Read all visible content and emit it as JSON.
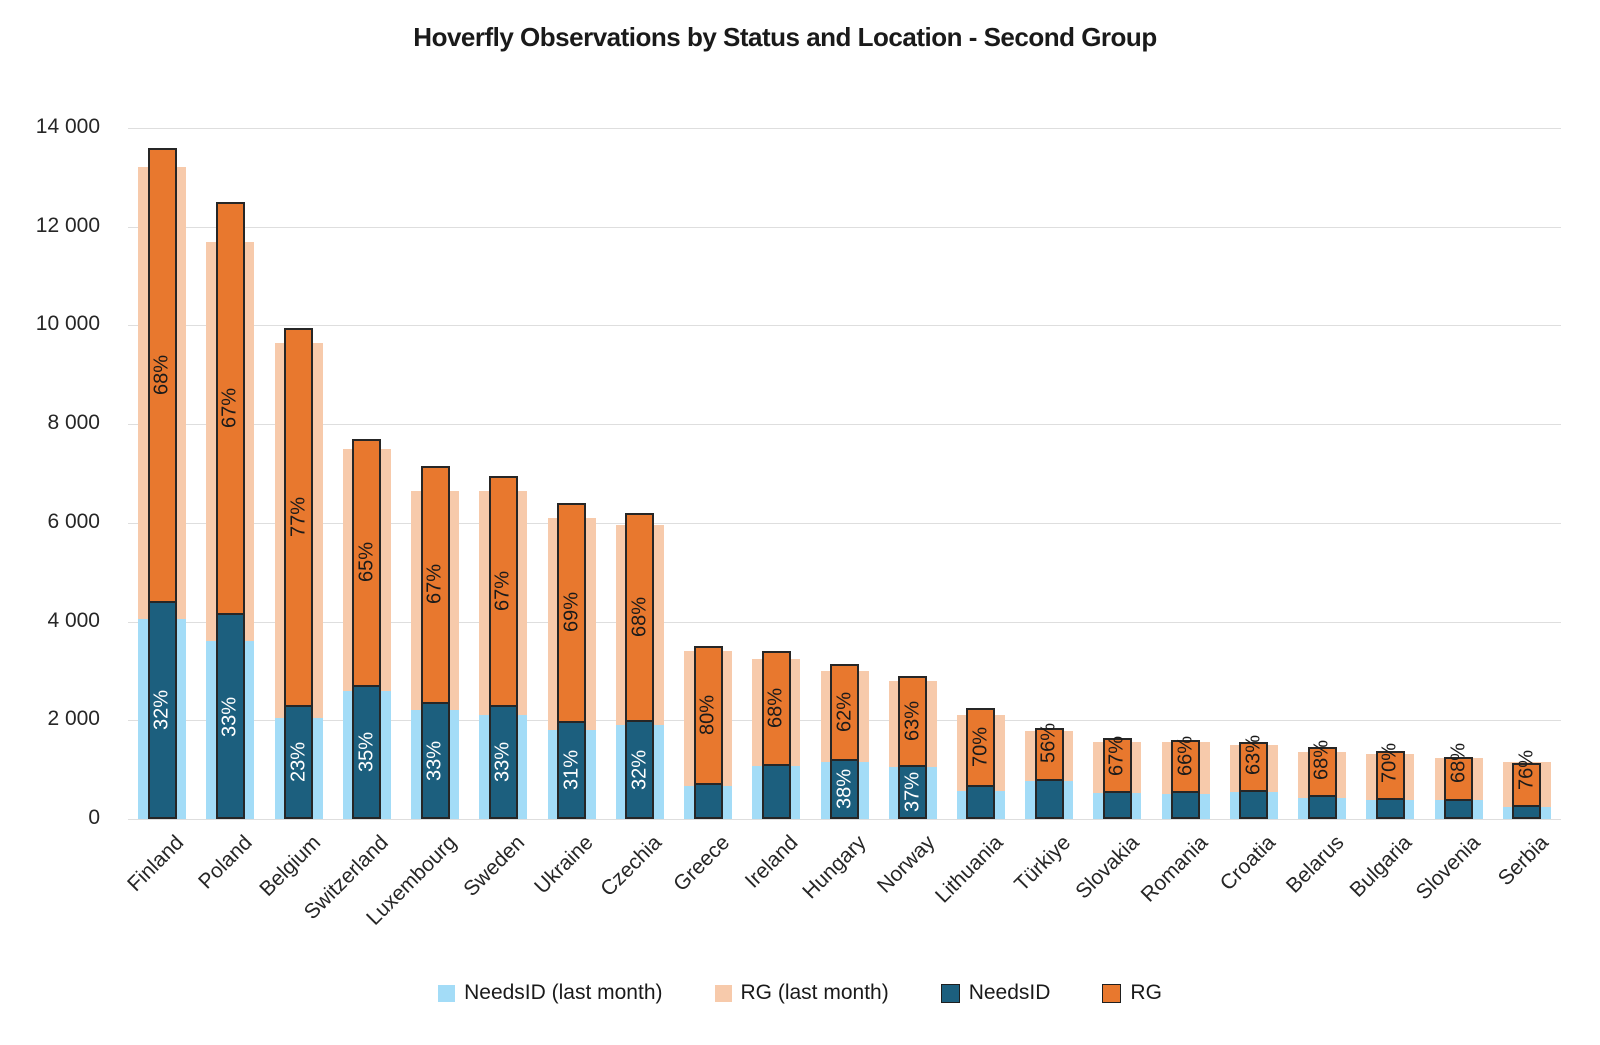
{
  "chart_data": {
    "type": "bar",
    "title": "Hoverfly Observations by Status and Location - Second Group",
    "xlabel": "",
    "ylabel": "",
    "ylim": [
      0,
      14000
    ],
    "ytick_step": 2000,
    "yticks": [
      "0",
      "2 000",
      "4 000",
      "6 000",
      "8 000",
      "10 000",
      "12 000",
      "14 000"
    ],
    "grid": true,
    "legend_position": "bottom",
    "bar_style": "stacked, current-period narrow bars overlaid on wider last-month bars",
    "categories": [
      "Finland",
      "Poland",
      "Belgium",
      "Switzerland",
      "Luxembourg",
      "Sweden",
      "Ukraine",
      "Czechia",
      "Greece",
      "Ireland",
      "Hungary",
      "Norway",
      "Lithuania",
      "Türkiye",
      "Slovakia",
      "Romania",
      "Croatia",
      "Belarus",
      "Bulgaria",
      "Slovenia",
      "Serbia"
    ],
    "series": [
      {
        "name": "NeedsID (last month)",
        "role": "back-bottom",
        "color": "#a3dcf7",
        "values": [
          4050,
          3600,
          2050,
          2600,
          2200,
          2100,
          1800,
          1900,
          670,
          1075,
          1150,
          1050,
          570,
          775,
          525,
          500,
          550,
          425,
          390,
          390,
          250
        ]
      },
      {
        "name": "RG (last month)",
        "role": "back-top",
        "color": "#f7caab",
        "values": [
          9150,
          8100,
          7600,
          4900,
          4450,
          4550,
          4300,
          4050,
          2730,
          2175,
          1850,
          1750,
          1530,
          1000,
          1025,
          1050,
          950,
          925,
          935,
          840,
          900
        ]
      },
      {
        "name": "NeedsID",
        "role": "front-bottom",
        "color": "#1c5f7e",
        "values": [
          4400,
          4150,
          2290,
          2700,
          2360,
          2300,
          1975,
          2000,
          700,
          1100,
          1200,
          1075,
          675,
          815,
          550,
          545,
          575,
          465,
          415,
          400,
          270
        ]
      },
      {
        "name": "RG",
        "role": "front-top",
        "color": "#e8782e",
        "values": [
          9200,
          8350,
          7660,
          5000,
          4790,
          4650,
          4425,
          4200,
          2800,
          2300,
          1950,
          1825,
          1575,
          1035,
          1100,
          1055,
          975,
          985,
          960,
          850,
          855
        ]
      }
    ],
    "bar_labels": {
      "rg_pct": [
        "68%",
        "67%",
        "77%",
        "65%",
        "67%",
        "67%",
        "69%",
        "68%",
        "80%",
        "68%",
        "62%",
        "63%",
        "70%",
        "56%",
        "67%",
        "66%",
        "63%",
        "68%",
        "70%",
        "68%",
        "76%"
      ],
      "needsid_pct": [
        "32%",
        "33%",
        "23%",
        "35%",
        "33%",
        "33%",
        "31%",
        "32%",
        "",
        "",
        "38%",
        "37%",
        "",
        "",
        "",
        "",
        "",
        "",
        "",
        "",
        ""
      ]
    },
    "legend": [
      "NeedsID (last month)",
      "RG (last month)",
      "NeedsID",
      "RG"
    ],
    "colors": {
      "needsid_last_month": "#a3dcf7",
      "rg_last_month": "#f7caab",
      "needsid": "#1c5f7e",
      "rg": "#e8782e",
      "rg_label_text": "#1a1a1a",
      "needsid_label_text": "#ffffff",
      "gridline": "#dedede",
      "axis_text": "#262626"
    }
  }
}
